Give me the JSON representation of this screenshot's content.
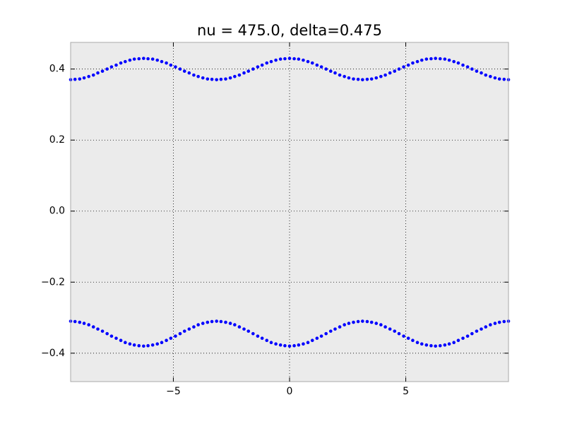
{
  "chart_data": {
    "type": "scatter",
    "title": "nu = 475.0, delta=0.475",
    "x": [
      -9.42,
      -9.23,
      -9.03,
      -8.84,
      -8.64,
      -8.44,
      -8.25,
      -8.05,
      -7.85,
      -7.66,
      -7.46,
      -7.26,
      -7.07,
      -6.87,
      -6.68,
      -6.48,
      -6.28,
      -6.09,
      -5.89,
      -5.69,
      -5.5,
      -5.3,
      -5.11,
      -4.91,
      -4.71,
      -4.52,
      -4.32,
      -4.12,
      -3.93,
      -3.73,
      -3.53,
      -3.34,
      -3.14,
      -2.95,
      -2.75,
      -2.55,
      -2.36,
      -2.16,
      -1.96,
      -1.77,
      -1.57,
      -1.37,
      -1.18,
      -0.98,
      -0.79,
      -0.59,
      -0.39,
      -0.2,
      0,
      0.2,
      0.39,
      0.59,
      0.79,
      0.98,
      1.18,
      1.37,
      1.57,
      1.77,
      1.96,
      2.16,
      2.36,
      2.55,
      2.75,
      2.95,
      3.14,
      3.34,
      3.53,
      3.73,
      3.93,
      4.12,
      4.32,
      4.52,
      4.71,
      4.91,
      5.11,
      5.3,
      5.5,
      5.69,
      5.89,
      6.09,
      6.28,
      6.48,
      6.68,
      6.87,
      7.07,
      7.26,
      7.46,
      7.66,
      7.85,
      8.05,
      8.25,
      8.44,
      8.64,
      8.84,
      9.03,
      9.23,
      9.42
    ],
    "series": [
      {
        "color": "#0000ff",
        "values": [
          0.37,
          0.371,
          0.372,
          0.375,
          0.379,
          0.383,
          0.389,
          0.394,
          0.4,
          0.406,
          0.411,
          0.417,
          0.421,
          0.425,
          0.428,
          0.429,
          0.43,
          0.429,
          0.428,
          0.425,
          0.421,
          0.417,
          0.411,
          0.406,
          0.4,
          0.394,
          0.389,
          0.383,
          0.379,
          0.375,
          0.372,
          0.371,
          0.37,
          0.371,
          0.372,
          0.375,
          0.379,
          0.383,
          0.389,
          0.394,
          0.4,
          0.406,
          0.411,
          0.417,
          0.421,
          0.425,
          0.428,
          0.429,
          0.43,
          0.429,
          0.428,
          0.425,
          0.421,
          0.417,
          0.411,
          0.406,
          0.4,
          0.394,
          0.389,
          0.383,
          0.379,
          0.375,
          0.372,
          0.371,
          0.37,
          0.371,
          0.372,
          0.375,
          0.379,
          0.383,
          0.389,
          0.394,
          0.4,
          0.406,
          0.411,
          0.417,
          0.421,
          0.425,
          0.428,
          0.429,
          0.43,
          0.429,
          0.428,
          0.425,
          0.421,
          0.417,
          0.411,
          0.406,
          0.4,
          0.394,
          0.389,
          0.383,
          0.379,
          0.375,
          0.372,
          0.371,
          0.37
        ]
      },
      {
        "color": "#0000ff",
        "values": [
          -0.31,
          -0.311,
          -0.313,
          -0.316,
          -0.32,
          -0.326,
          -0.332,
          -0.338,
          -0.345,
          -0.352,
          -0.358,
          -0.364,
          -0.37,
          -0.374,
          -0.377,
          -0.379,
          -0.38,
          -0.379,
          -0.377,
          -0.374,
          -0.37,
          -0.364,
          -0.358,
          -0.352,
          -0.345,
          -0.338,
          -0.332,
          -0.326,
          -0.32,
          -0.316,
          -0.313,
          -0.311,
          -0.31,
          -0.311,
          -0.313,
          -0.316,
          -0.32,
          -0.326,
          -0.332,
          -0.338,
          -0.345,
          -0.352,
          -0.358,
          -0.364,
          -0.37,
          -0.374,
          -0.377,
          -0.379,
          -0.38,
          -0.379,
          -0.377,
          -0.374,
          -0.37,
          -0.364,
          -0.358,
          -0.352,
          -0.345,
          -0.338,
          -0.332,
          -0.326,
          -0.32,
          -0.316,
          -0.313,
          -0.311,
          -0.31,
          -0.311,
          -0.313,
          -0.316,
          -0.32,
          -0.326,
          -0.332,
          -0.338,
          -0.345,
          -0.352,
          -0.358,
          -0.364,
          -0.37,
          -0.374,
          -0.377,
          -0.379,
          -0.38,
          -0.379,
          -0.377,
          -0.374,
          -0.37,
          -0.364,
          -0.358,
          -0.352,
          -0.345,
          -0.338,
          -0.332,
          -0.326,
          -0.32,
          -0.316,
          -0.313,
          -0.311,
          -0.31
        ]
      }
    ],
    "xlim": [
      -9.42,
      9.42
    ],
    "ylim": [
      -0.48,
      0.475
    ],
    "xticks": [
      {
        "value": -5,
        "label": "−5"
      },
      0,
      5
    ],
    "yticks": [
      {
        "value": -0.4,
        "label": "−0.4"
      },
      {
        "value": -0.2,
        "label": "−0.2"
      },
      {
        "value": 0,
        "label": "0.0"
      },
      0.2,
      0.4
    ],
    "grid": true,
    "background": "#ebebeb"
  }
}
